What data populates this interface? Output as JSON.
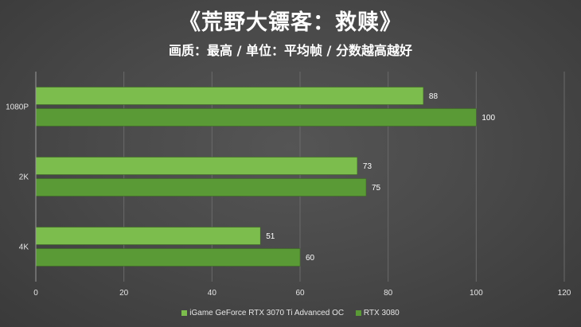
{
  "chart_data": {
    "type": "bar",
    "orientation": "horizontal",
    "title": "《荒野大镖客：救赎》",
    "subtitle": "画质：最高 / 单位：平均帧 / 分数越高越好",
    "categories": [
      "1080P",
      "2K",
      "4K"
    ],
    "series": [
      {
        "name": "iGame GeForce RTX 3070 Ti Advanced OC",
        "values": [
          88,
          73,
          51
        ],
        "color": "#7cbd4d"
      },
      {
        "name": "RTX 3080",
        "values": [
          100,
          75,
          60
        ],
        "color": "#5a9a36"
      }
    ],
    "xlim": [
      0,
      120
    ],
    "xticks": [
      0,
      20,
      40,
      60,
      80,
      100,
      120
    ],
    "grid": "vertical",
    "legend_position": "bottom"
  }
}
